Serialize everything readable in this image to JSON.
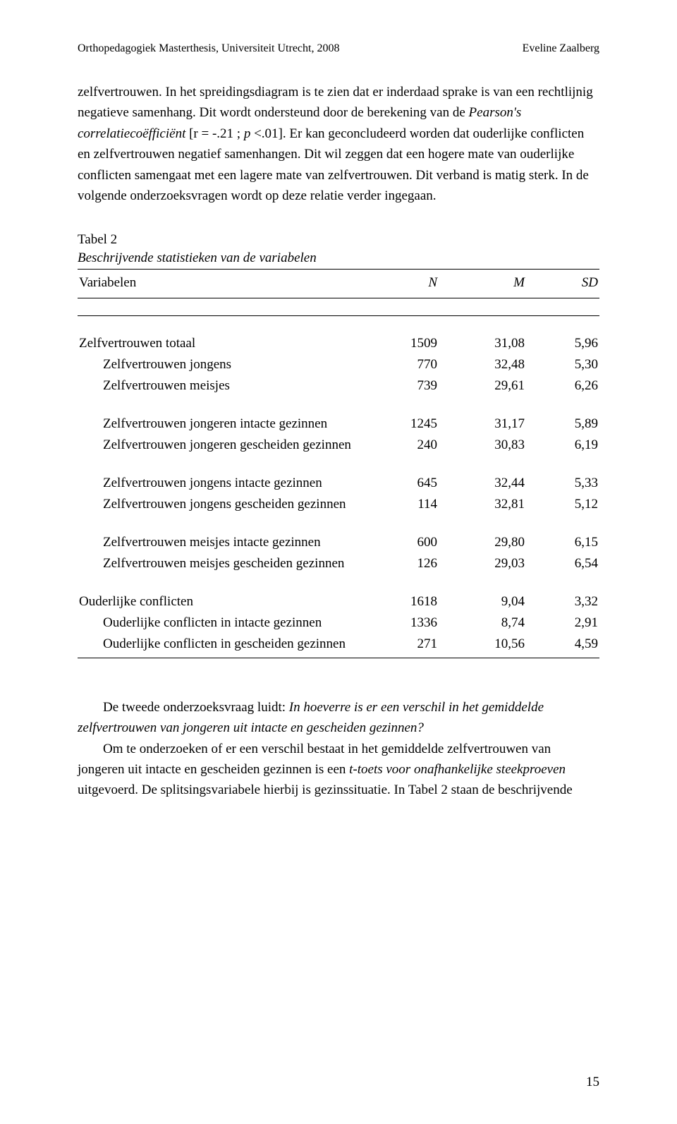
{
  "header": {
    "left": "Orthopedagogiek Masterthesis, Universiteit Utrecht, 2008",
    "right": "Eveline Zaalberg"
  },
  "paragraph1_a": "zelfvertrouwen. In het spreidingsdiagram is te zien dat er inderdaad sprake is van een rechtlijnig negatieve samenhang. Dit wordt ondersteund door de berekening van de ",
  "paragraph1_italic1": "Pearson's correlatiecoëfficiënt ",
  "paragraph1_b": "[r = -.21 ; ",
  "paragraph1_italic2": "p ",
  "paragraph1_c": "<.01]. Er kan geconcludeerd worden dat ouderlijke conflicten en zelfvertrouwen negatief samenhangen. Dit wil zeggen dat een hogere mate van ouderlijke conflicten samengaat met een lagere mate van zelfvertrouwen. Dit verband is matig sterk. In de volgende onderzoeksvragen wordt op deze relatie verder ingegaan.",
  "table": {
    "label": "Tabel 2",
    "caption": "Beschrijvende statistieken van de variabelen",
    "columns": [
      "Variabelen",
      "N",
      "M",
      "SD"
    ],
    "rows": [
      {
        "label": "Zelfvertrouwen totaal",
        "n": "1509",
        "m": "31,08",
        "sd": "5,96",
        "indent": 0,
        "group": 1
      },
      {
        "label": "Zelfvertrouwen jongens",
        "n": "770",
        "m": "32,48",
        "sd": "5,30",
        "indent": 1,
        "group": 1
      },
      {
        "label": "Zelfvertrouwen meisjes",
        "n": "739",
        "m": "29,61",
        "sd": "6,26",
        "indent": 1,
        "group": 1
      },
      {
        "label": "Zelfvertrouwen jongeren intacte gezinnen",
        "n": "1245",
        "m": "31,17",
        "sd": "5,89",
        "indent": 1,
        "group": 2
      },
      {
        "label": "Zelfvertrouwen jongeren gescheiden gezinnen",
        "n": "240",
        "m": "30,83",
        "sd": "6,19",
        "indent": 1,
        "group": 2
      },
      {
        "label": "Zelfvertrouwen jongens intacte gezinnen",
        "n": "645",
        "m": "32,44",
        "sd": "5,33",
        "indent": 1,
        "group": 3
      },
      {
        "label": "Zelfvertrouwen jongens gescheiden gezinnen",
        "n": "114",
        "m": "32,81",
        "sd": "5,12",
        "indent": 1,
        "group": 3
      },
      {
        "label": "Zelfvertrouwen meisjes intacte gezinnen",
        "n": "600",
        "m": "29,80",
        "sd": "6,15",
        "indent": 1,
        "group": 4
      },
      {
        "label": "Zelfvertrouwen meisjes gescheiden gezinnen",
        "n": "126",
        "m": "29,03",
        "sd": "6,54",
        "indent": 1,
        "group": 4
      },
      {
        "label": "Ouderlijke conflicten",
        "n": "1618",
        "m": "9,04",
        "sd": "3,32",
        "indent": 0,
        "group": 5
      },
      {
        "label": "Ouderlijke conflicten in intacte gezinnen",
        "n": "1336",
        "m": "8,74",
        "sd": "2,91",
        "indent": 1,
        "group": 5
      },
      {
        "label": "Ouderlijke conflicten in gescheiden gezinnen",
        "n": "271",
        "m": "10,56",
        "sd": "4,59",
        "indent": 1,
        "group": 5
      }
    ]
  },
  "paragraph2_a": "De tweede onderzoeksvraag luidt: ",
  "paragraph2_italic": "In hoeverre is er een verschil in het gemiddelde zelfvertrouwen van jongeren uit intacte en gescheiden gezinnen?",
  "paragraph3_a": "Om te onderzoeken of er een verschil bestaat in het gemiddelde zelfvertrouwen van jongeren uit intacte en gescheiden gezinnen is een ",
  "paragraph3_italic": "t-toets voor onafhankelijke steekproeven ",
  "paragraph3_b": "uitgevoerd. De splitsingsvariabele hierbij is gezinssituatie. In Tabel 2 staan de beschrijvende",
  "page_number": "15"
}
